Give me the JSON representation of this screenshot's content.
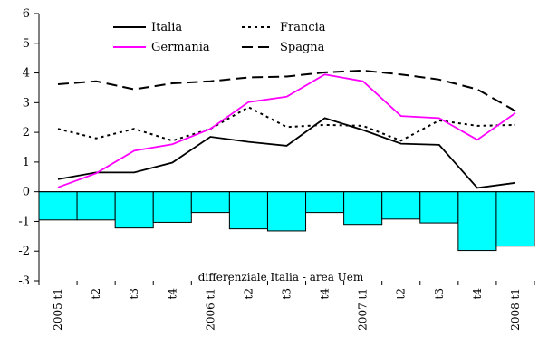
{
  "chart_data": {
    "type": "line",
    "categories": [
      "2005 t1",
      "t2",
      "t3",
      "t4",
      "2006 t1",
      "t2",
      "t3",
      "t4",
      "2007 t1",
      "t2",
      "t3",
      "t4",
      "2008 t1"
    ],
    "ylim": [
      -3,
      6
    ],
    "yticks": [
      -3,
      -2,
      -1,
      0,
      1,
      2,
      3,
      4,
      5,
      6
    ],
    "grid": false,
    "legend_position": "top-center",
    "series": [
      {
        "name": "Italia",
        "style": "solid",
        "color": "#000000",
        "values": [
          0.42,
          0.65,
          0.65,
          0.98,
          1.85,
          1.68,
          1.55,
          2.48,
          2.08,
          1.62,
          1.58,
          0.13,
          0.3
        ]
      },
      {
        "name": "Francia",
        "style": "dotted",
        "color": "#000000",
        "values": [
          2.12,
          1.8,
          2.12,
          1.72,
          2.12,
          2.85,
          2.18,
          2.25,
          2.22,
          1.72,
          2.4,
          2.22,
          2.25
        ]
      },
      {
        "name": "Germania",
        "style": "solid",
        "color": "#ff00ff",
        "values": [
          0.15,
          0.62,
          1.38,
          1.6,
          2.12,
          3.02,
          3.2,
          3.95,
          3.72,
          2.55,
          2.48,
          1.75,
          2.65
        ]
      },
      {
        "name": "Spagna",
        "style": "dashed",
        "color": "#000000",
        "values": [
          3.62,
          3.72,
          3.45,
          3.65,
          3.72,
          3.85,
          3.88,
          4.02,
          4.08,
          3.95,
          3.78,
          3.45,
          2.72
        ]
      }
    ],
    "bars": {
      "color": "#00ffff",
      "annotation": "differenziale Italia - area Uem",
      "values": [
        -0.95,
        -0.95,
        -1.22,
        -1.03,
        -0.7,
        -1.25,
        -1.32,
        -0.7,
        -1.1,
        -0.92,
        -1.05,
        -1.98,
        -1.83
      ]
    }
  }
}
